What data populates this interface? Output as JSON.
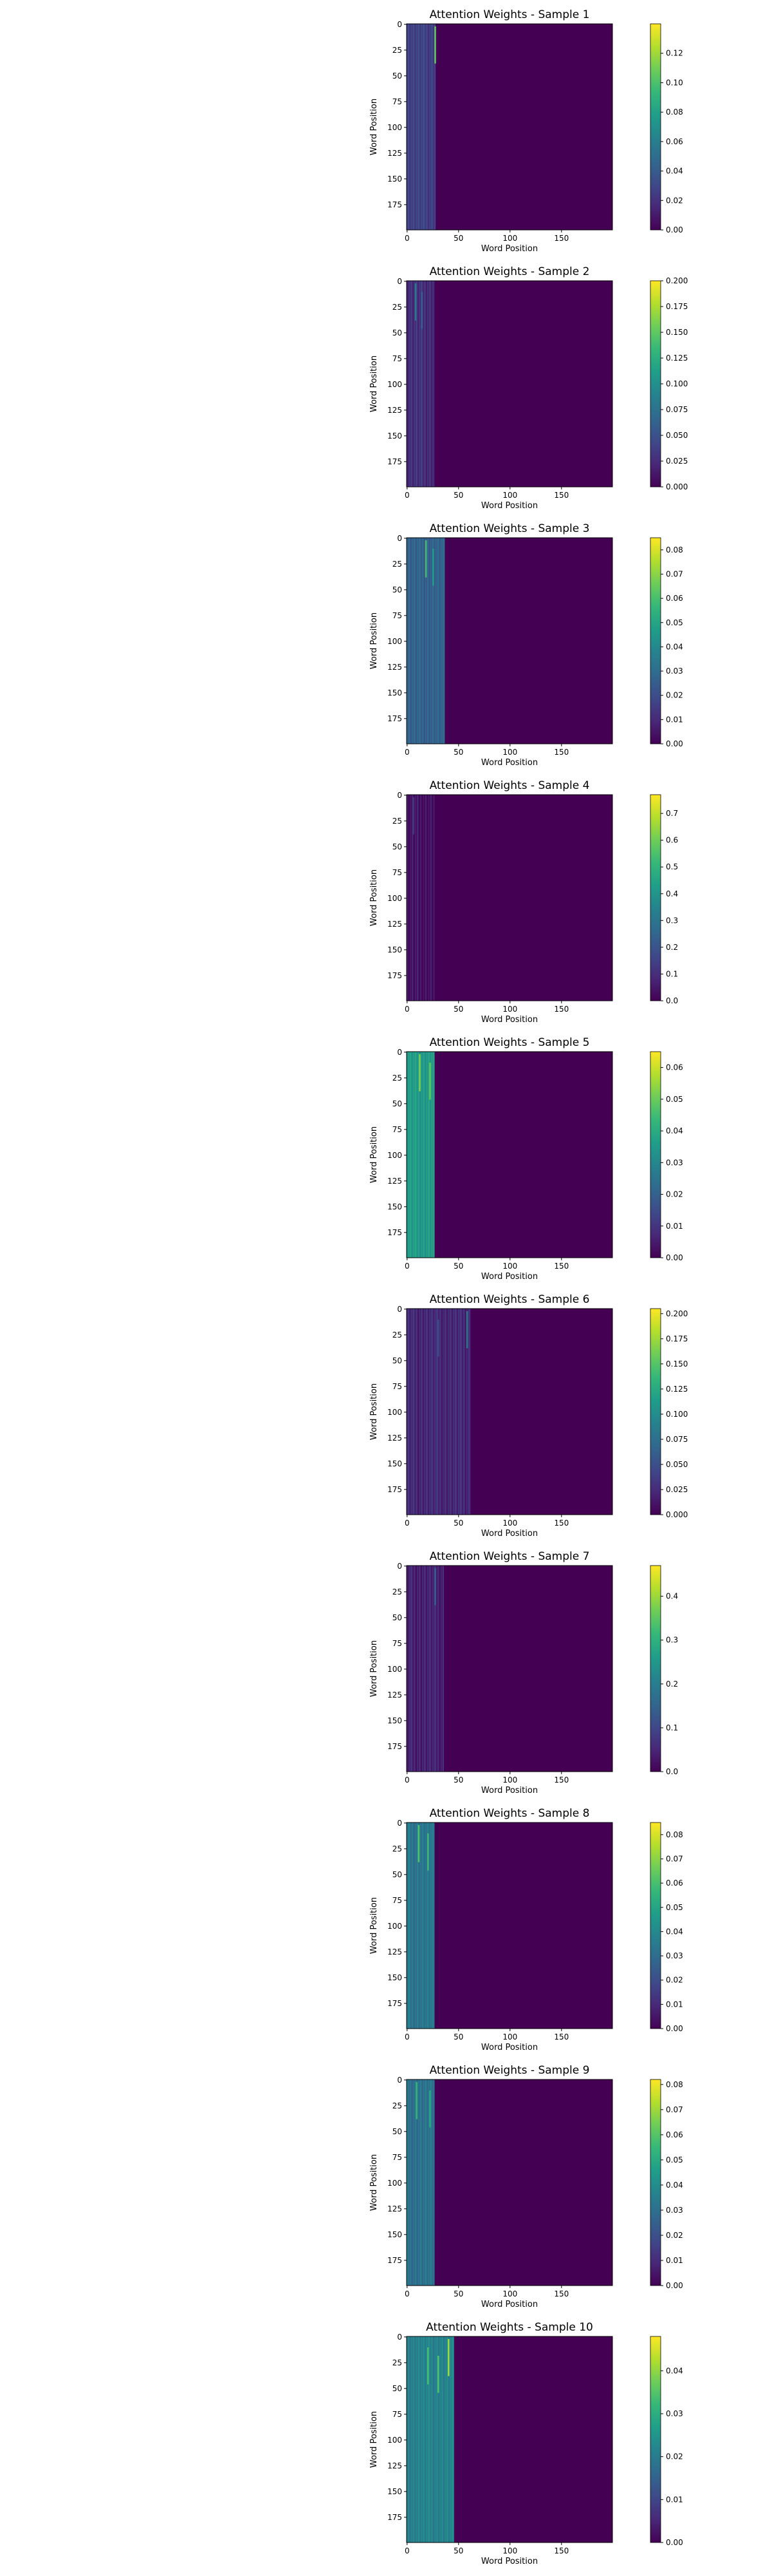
{
  "chart_data": [
    {
      "type": "heatmap",
      "title": "Attention Weights - Sample 1",
      "xlabel": "Word Position",
      "ylabel": "Word Position",
      "xlim": [
        0,
        199
      ],
      "ylim": [
        199,
        0
      ],
      "x_ticks": [
        "0",
        "50",
        "100",
        "150"
      ],
      "y_ticks": [
        "0",
        "25",
        "50",
        "75",
        "100",
        "125",
        "150",
        "175"
      ],
      "colormap": "viridis",
      "colorbar": {
        "min": 0,
        "max": 0.14,
        "ticks": [
          "0.00",
          "0.02",
          "0.04",
          "0.06",
          "0.08",
          "0.10",
          "0.12"
        ]
      },
      "active_columns": 28,
      "level": 0.2,
      "hot_columns": [
        {
          "col": 27,
          "level": 0.75
        }
      ]
    },
    {
      "type": "heatmap",
      "title": "Attention Weights - Sample 2",
      "xlabel": "Word Position",
      "ylabel": "Word Position",
      "xlim": [
        0,
        199
      ],
      "ylim": [
        199,
        0
      ],
      "x_ticks": [
        "0",
        "50",
        "100",
        "150"
      ],
      "y_ticks": [
        "0",
        "25",
        "50",
        "75",
        "100",
        "125",
        "150",
        "175"
      ],
      "colormap": "viridis",
      "colorbar": {
        "min": 0,
        "max": 0.2,
        "ticks": [
          "0.000",
          "0.025",
          "0.050",
          "0.075",
          "0.100",
          "0.125",
          "0.150",
          "0.175",
          "0.200"
        ]
      },
      "active_columns": 27,
      "level": 0.14,
      "hot_columns": [
        {
          "col": 8,
          "level": 0.4
        },
        {
          "col": 14,
          "level": 0.3
        }
      ]
    },
    {
      "type": "heatmap",
      "title": "Attention Weights - Sample 3",
      "xlabel": "Word Position",
      "ylabel": "Word Position",
      "xlim": [
        0,
        199
      ],
      "ylim": [
        199,
        0
      ],
      "x_ticks": [
        "0",
        "50",
        "100",
        "150"
      ],
      "y_ticks": [
        "0",
        "25",
        "50",
        "75",
        "100",
        "125",
        "150",
        "175"
      ],
      "colormap": "viridis",
      "colorbar": {
        "min": 0,
        "max": 0.085,
        "ticks": [
          "0.00",
          "0.01",
          "0.02",
          "0.03",
          "0.04",
          "0.05",
          "0.06",
          "0.07",
          "0.08"
        ]
      },
      "active_columns": 37,
      "level": 0.32,
      "hot_columns": [
        {
          "col": 18,
          "level": 0.7
        },
        {
          "col": 25,
          "level": 0.55
        }
      ]
    },
    {
      "type": "heatmap",
      "title": "Attention Weights - Sample 4",
      "xlabel": "Word Position",
      "ylabel": "Word Position",
      "xlim": [
        0,
        199
      ],
      "ylim": [
        199,
        0
      ],
      "x_ticks": [
        "0",
        "50",
        "100",
        "150"
      ],
      "y_ticks": [
        "0",
        "25",
        "50",
        "75",
        "100",
        "125",
        "150",
        "175"
      ],
      "colormap": "viridis",
      "colorbar": {
        "min": 0,
        "max": 0.77,
        "ticks": [
          "0.0",
          "0.1",
          "0.2",
          "0.3",
          "0.4",
          "0.5",
          "0.6",
          "0.7"
        ]
      },
      "active_columns": 27,
      "level": 0.05,
      "hot_columns": [
        {
          "col": 6,
          "level": 0.15
        }
      ]
    },
    {
      "type": "heatmap",
      "title": "Attention Weights - Sample 5",
      "xlabel": "Word Position",
      "ylabel": "Word Position",
      "xlim": [
        0,
        199
      ],
      "ylim": [
        199,
        0
      ],
      "x_ticks": [
        "0",
        "50",
        "100",
        "150"
      ],
      "y_ticks": [
        "0",
        "25",
        "50",
        "75",
        "100",
        "125",
        "150",
        "175"
      ],
      "colormap": "viridis",
      "colorbar": {
        "min": 0,
        "max": 0.065,
        "ticks": [
          "0.00",
          "0.01",
          "0.02",
          "0.03",
          "0.04",
          "0.05",
          "0.06"
        ]
      },
      "active_columns": 27,
      "level": 0.55,
      "hot_columns": [
        {
          "col": 12,
          "level": 0.8
        },
        {
          "col": 22,
          "level": 0.75
        }
      ]
    },
    {
      "type": "heatmap",
      "title": "Attention Weights - Sample 6",
      "xlabel": "Word Position",
      "ylabel": "Word Position",
      "xlim": [
        0,
        199
      ],
      "ylim": [
        199,
        0
      ],
      "x_ticks": [
        "0",
        "50",
        "100",
        "150"
      ],
      "y_ticks": [
        "0",
        "25",
        "50",
        "75",
        "100",
        "125",
        "150",
        "175"
      ],
      "colormap": "viridis",
      "colorbar": {
        "min": 0,
        "max": 0.205,
        "ticks": [
          "0.000",
          "0.025",
          "0.050",
          "0.075",
          "0.100",
          "0.125",
          "0.150",
          "0.175",
          "0.200"
        ]
      },
      "active_columns": 62,
      "level": 0.12,
      "hot_columns": [
        {
          "col": 58,
          "level": 0.4
        },
        {
          "col": 30,
          "level": 0.22
        }
      ]
    },
    {
      "type": "heatmap",
      "title": "Attention Weights - Sample 7",
      "xlabel": "Word Position",
      "ylabel": "Word Position",
      "xlim": [
        0,
        199
      ],
      "ylim": [
        199,
        0
      ],
      "x_ticks": [
        "0",
        "50",
        "100",
        "150"
      ],
      "y_ticks": [
        "0",
        "25",
        "50",
        "75",
        "100",
        "125",
        "150",
        "175"
      ],
      "colormap": "viridis",
      "colorbar": {
        "min": 0,
        "max": 0.47,
        "ticks": [
          "0.0",
          "0.1",
          "0.2",
          "0.3",
          "0.4"
        ]
      },
      "active_columns": 36,
      "level": 0.1,
      "hot_columns": [
        {
          "col": 27,
          "level": 0.3
        }
      ]
    },
    {
      "type": "heatmap",
      "title": "Attention Weights - Sample 8",
      "xlabel": "Word Position",
      "ylabel": "Word Position",
      "xlim": [
        0,
        199
      ],
      "ylim": [
        199,
        0
      ],
      "x_ticks": [
        "0",
        "50",
        "100",
        "150"
      ],
      "y_ticks": [
        "0",
        "25",
        "50",
        "75",
        "100",
        "125",
        "150",
        "175"
      ],
      "colormap": "viridis",
      "colorbar": {
        "min": 0,
        "max": 0.085,
        "ticks": [
          "0.00",
          "0.01",
          "0.02",
          "0.03",
          "0.04",
          "0.05",
          "0.06",
          "0.07",
          "0.08"
        ]
      },
      "active_columns": 27,
      "level": 0.4,
      "hot_columns": [
        {
          "col": 11,
          "level": 0.72
        },
        {
          "col": 20,
          "level": 0.68
        }
      ]
    },
    {
      "type": "heatmap",
      "title": "Attention Weights - Sample 9",
      "xlabel": "Word Position",
      "ylabel": "Word Position",
      "xlim": [
        0,
        199
      ],
      "ylim": [
        199,
        0
      ],
      "x_ticks": [
        "0",
        "50",
        "100",
        "150"
      ],
      "y_ticks": [
        "0",
        "25",
        "50",
        "75",
        "100",
        "125",
        "150",
        "175"
      ],
      "colormap": "viridis",
      "colorbar": {
        "min": 0,
        "max": 0.082,
        "ticks": [
          "0.00",
          "0.01",
          "0.02",
          "0.03",
          "0.04",
          "0.05",
          "0.06",
          "0.07",
          "0.08"
        ]
      },
      "active_columns": 27,
      "level": 0.38,
      "hot_columns": [
        {
          "col": 9,
          "level": 0.65
        },
        {
          "col": 22,
          "level": 0.6
        }
      ]
    },
    {
      "type": "heatmap",
      "title": "Attention Weights - Sample 10",
      "xlabel": "Word Position",
      "ylabel": "Word Position",
      "xlim": [
        0,
        199
      ],
      "ylim": [
        199,
        0
      ],
      "x_ticks": [
        "0",
        "50",
        "100",
        "150"
      ],
      "y_ticks": [
        "0",
        "25",
        "50",
        "75",
        "100",
        "125",
        "150",
        "175"
      ],
      "colormap": "viridis",
      "colorbar": {
        "min": 0,
        "max": 0.048,
        "ticks": [
          "0.00",
          "0.01",
          "0.02",
          "0.03",
          "0.04"
        ]
      },
      "active_columns": 46,
      "level": 0.45,
      "hot_columns": [
        {
          "col": 40,
          "level": 0.85
        },
        {
          "col": 20,
          "level": 0.7
        },
        {
          "col": 30,
          "level": 0.72
        }
      ]
    }
  ]
}
